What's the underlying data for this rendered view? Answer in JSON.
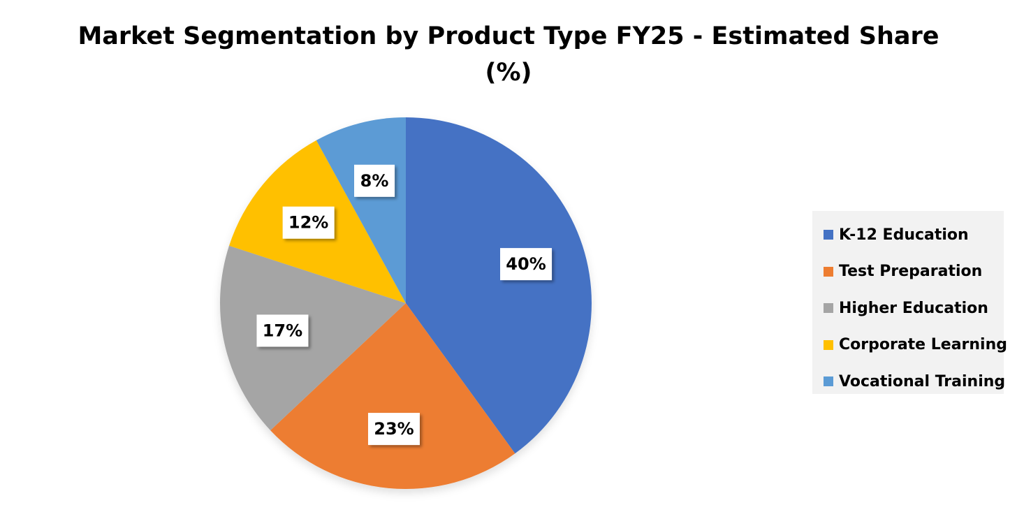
{
  "chart_data": {
    "type": "pie",
    "title": "Market Segmentation by Product Type FY25 - Estimated Share",
    "title_line2": "(%)",
    "legend_position": "right",
    "slices": [
      {
        "label": "K-12 Education",
        "value": 40,
        "display": "40%",
        "color": "#4472C4"
      },
      {
        "label": "Test Preparation",
        "value": 23,
        "display": "23%",
        "color": "#ED7D31"
      },
      {
        "label": "Higher Education",
        "value": 17,
        "display": "17%",
        "color": "#A5A5A5"
      },
      {
        "label": "Corporate Learning",
        "value": 12,
        "display": "12%",
        "color": "#FFC000"
      },
      {
        "label": "Vocational Training",
        "value": 8,
        "display": "8%",
        "color": "#5B9BD5"
      }
    ]
  }
}
